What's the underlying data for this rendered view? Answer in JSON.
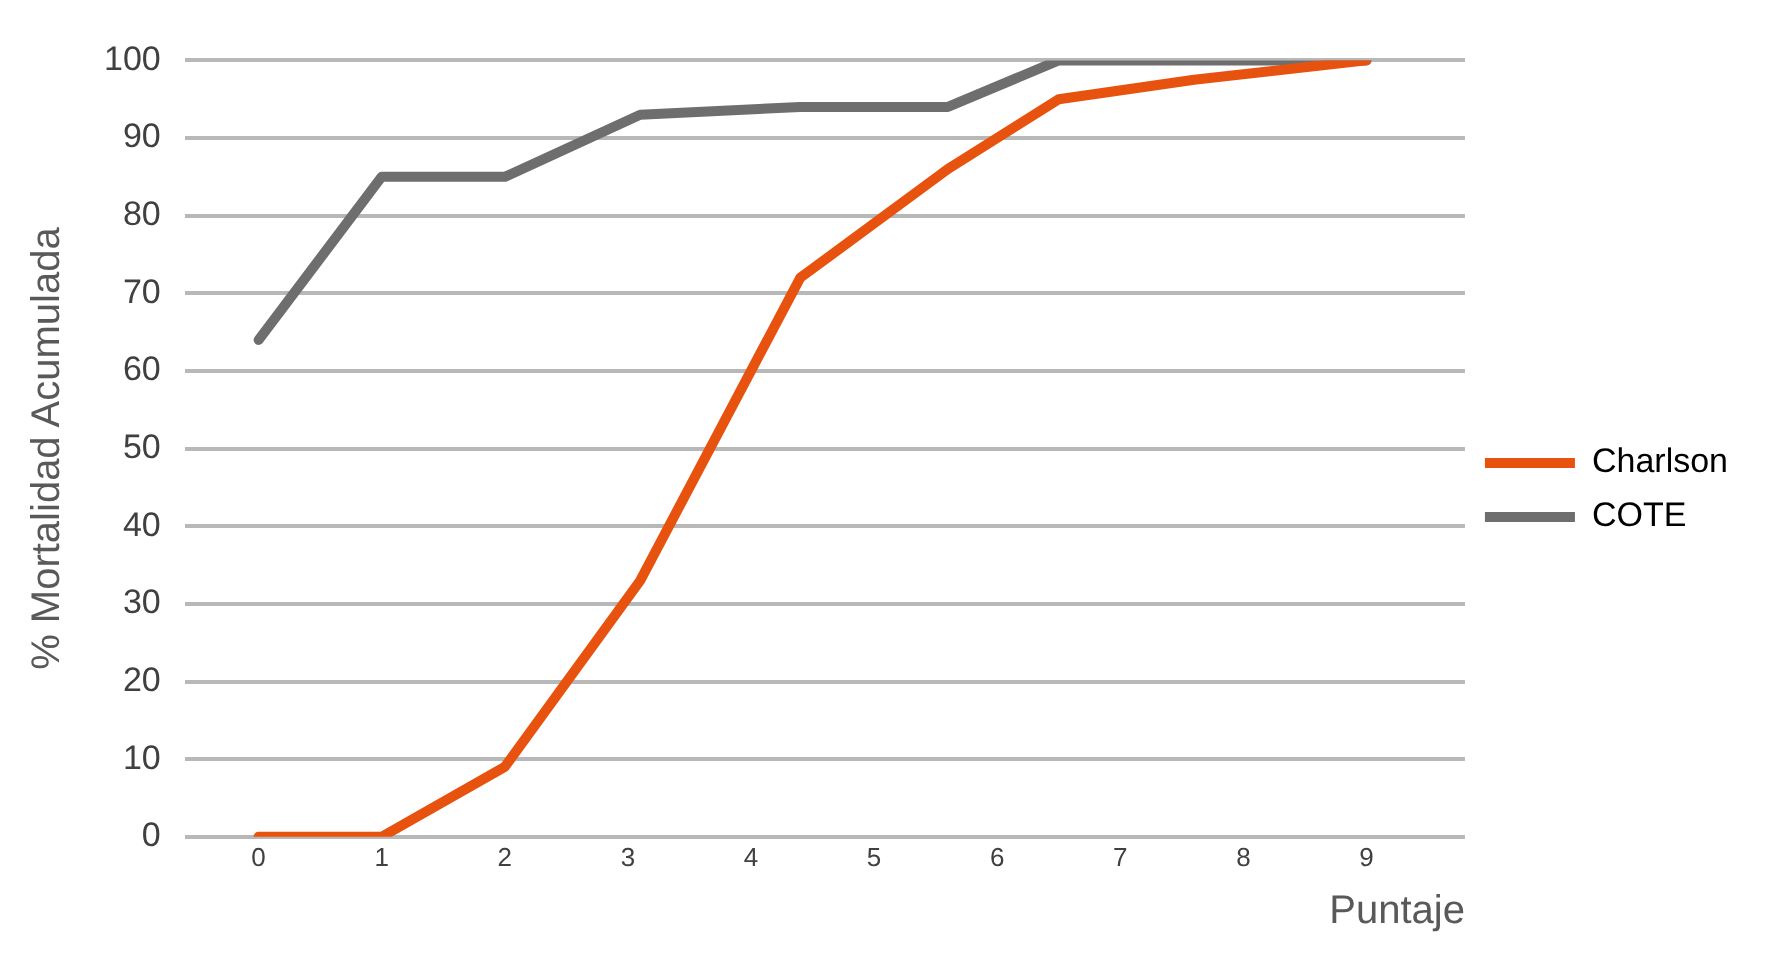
{
  "chart_data": {
    "type": "line",
    "xlabel": "Puntaje",
    "ylabel": "% Mortalidad Acumulada",
    "x": [
      0,
      1,
      2,
      3.1,
      4.4,
      5.6,
      6.5,
      7.6,
      9
    ],
    "xlim": [
      -0.6,
      9.8
    ],
    "xticks": [
      0,
      1,
      2,
      3,
      4,
      5,
      6,
      7,
      8,
      9
    ],
    "ylim": [
      0,
      100
    ],
    "yticks": [
      0,
      10,
      20,
      30,
      40,
      50,
      60,
      70,
      80,
      90,
      100
    ],
    "series": [
      {
        "name": "Charlson",
        "color": "#e8520f",
        "values": [
          0,
          0,
          9,
          33,
          72,
          86,
          95,
          97.5,
          100
        ]
      },
      {
        "name": "COTE",
        "color": "#6e6e6e",
        "values": [
          64,
          85,
          85,
          93,
          94,
          94,
          100,
          100,
          100
        ]
      }
    ],
    "grid": "y",
    "legend": "right",
    "marker": "none",
    "line_style": "solid"
  }
}
